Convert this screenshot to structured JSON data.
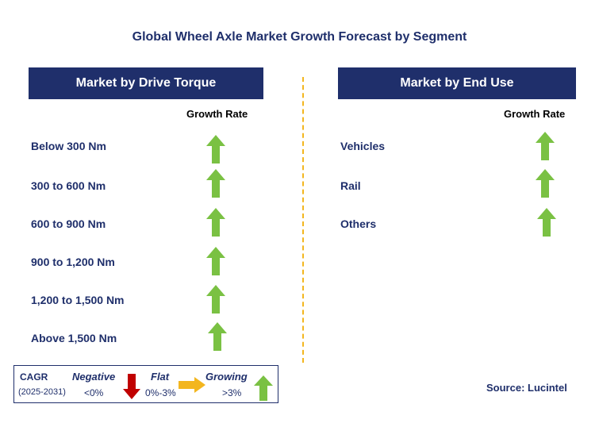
{
  "title": "Global Wheel Axle Market Growth Forecast by Segment",
  "colors": {
    "header_bg": "#1f2f6b",
    "arrow_up": "#7ac143",
    "arrow_down": "#c00000",
    "arrow_flat": "#f3b61f",
    "divider": "#f3b61f"
  },
  "left_panel": {
    "header": "Market by Drive Torque",
    "growth_label": "Growth Rate",
    "rows": [
      {
        "label": "Below 300 Nm",
        "trend": "growing"
      },
      {
        "label": "300 to 600 Nm",
        "trend": "growing"
      },
      {
        "label": "600 to 900 Nm",
        "trend": "growing"
      },
      {
        "label": "900 to 1,200 Nm",
        "trend": "growing"
      },
      {
        "label": "1,200 to 1,500 Nm",
        "trend": "growing"
      },
      {
        "label": "Above 1,500 Nm",
        "trend": "growing"
      }
    ]
  },
  "right_panel": {
    "header": "Market by End Use",
    "growth_label": "Growth Rate",
    "rows": [
      {
        "label": "Vehicles",
        "trend": "growing"
      },
      {
        "label": "Rail",
        "trend": "growing"
      },
      {
        "label": "Others",
        "trend": "growing"
      }
    ]
  },
  "legend": {
    "cagr_label": "CAGR",
    "period": "(2025-2031)",
    "negative_label": "Negative",
    "negative_range": "<0%",
    "flat_label": "Flat",
    "flat_range": "0%-3%",
    "growing_label": "Growing",
    "growing_range": ">3%"
  },
  "source": "Source: Lucintel"
}
